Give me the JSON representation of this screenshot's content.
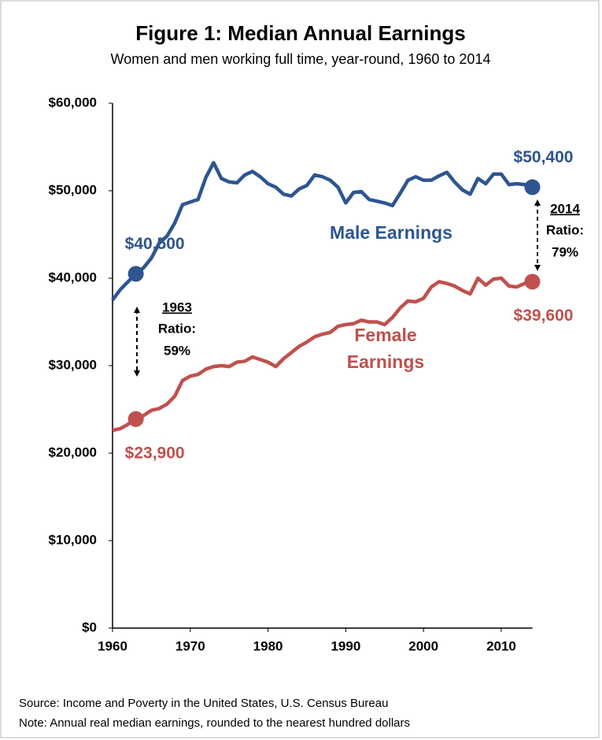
{
  "chart_data": {
    "type": "line",
    "title": "Figure 1: Median Annual Earnings",
    "subtitle": "Women and men working full time, year-round, 1960 to 2014",
    "x": [
      1960,
      1961,
      1962,
      1963,
      1964,
      1965,
      1966,
      1967,
      1968,
      1969,
      1970,
      1971,
      1972,
      1973,
      1974,
      1975,
      1976,
      1977,
      1978,
      1979,
      1980,
      1981,
      1982,
      1983,
      1984,
      1985,
      1986,
      1987,
      1988,
      1989,
      1990,
      1991,
      1992,
      1993,
      1994,
      1995,
      1996,
      1997,
      1998,
      1999,
      2000,
      2001,
      2002,
      2003,
      2004,
      2005,
      2006,
      2007,
      2008,
      2009,
      2010,
      2011,
      2012,
      2013,
      2014
    ],
    "series": [
      {
        "name": "Male Earnings",
        "color": "#2e5590",
        "values": [
          37500,
          38700,
          39600,
          40500,
          41200,
          42300,
          44000,
          44800,
          46300,
          48400,
          48700,
          49000,
          51500,
          53200,
          51400,
          51000,
          50900,
          51800,
          52200,
          51600,
          50800,
          50400,
          49600,
          49400,
          50200,
          50600,
          51800,
          51600,
          51200,
          50400,
          48600,
          49800,
          49900,
          49000,
          48800,
          48600,
          48300,
          49700,
          51200,
          51600,
          51200,
          51200,
          51700,
          52100,
          51000,
          50100,
          49600,
          51400,
          50800,
          51900,
          51900,
          50700,
          50800,
          50700,
          50400
        ],
        "value_labels": [
          null,
          null,
          null,
          "$40,500",
          null,
          null,
          null,
          null,
          null,
          null,
          null,
          null,
          null,
          null,
          null,
          null,
          null,
          null,
          null,
          null,
          null,
          null,
          null,
          null,
          null,
          null,
          null,
          null,
          null,
          null,
          null,
          null,
          null,
          null,
          null,
          null,
          null,
          null,
          null,
          null,
          null,
          null,
          null,
          null,
          null,
          null,
          null,
          null,
          null,
          null,
          null,
          null,
          null,
          null,
          "$50,400"
        ]
      },
      {
        "name": "Female Earnings",
        "color": "#c0504d",
        "values": [
          22600,
          22800,
          23300,
          23900,
          24300,
          24900,
          25100,
          25600,
          26500,
          28300,
          28800,
          29000,
          29600,
          29900,
          30000,
          29900,
          30400,
          30500,
          31000,
          30700,
          30400,
          29900,
          30800,
          31500,
          32200,
          32700,
          33300,
          33600,
          33800,
          34500,
          34700,
          34800,
          35200,
          35000,
          35000,
          34700,
          35500,
          36600,
          37400,
          37300,
          37700,
          39000,
          39600,
          39400,
          39100,
          38600,
          38200,
          40000,
          39200,
          39900,
          40000,
          39100,
          39000,
          39400,
          39600
        ],
        "value_labels": [
          null,
          null,
          null,
          "$23,900",
          null,
          null,
          null,
          null,
          null,
          null,
          null,
          null,
          null,
          null,
          null,
          null,
          null,
          null,
          null,
          null,
          null,
          null,
          null,
          null,
          null,
          null,
          null,
          null,
          null,
          null,
          null,
          null,
          null,
          null,
          null,
          null,
          null,
          null,
          null,
          null,
          null,
          null,
          null,
          null,
          null,
          null,
          null,
          null,
          null,
          null,
          null,
          null,
          null,
          null,
          "$39,600"
        ]
      }
    ],
    "xlim": [
      1960,
      2014
    ],
    "xticks": [
      1960,
      1970,
      1980,
      1990,
      2000,
      2010
    ],
    "ylim": [
      0,
      60000
    ],
    "yticks": [
      {
        "value": 0,
        "label": "$0"
      },
      {
        "value": 10000,
        "label": "$10,000"
      },
      {
        "value": 20000,
        "label": "$20,000"
      },
      {
        "value": 30000,
        "label": "$30,000"
      },
      {
        "value": 40000,
        "label": "$40,000"
      },
      {
        "value": 50000,
        "label": "$50,000"
      },
      {
        "value": 60000,
        "label": "$60,000"
      }
    ],
    "grid": false,
    "annotations": [
      {
        "heading": "1963",
        "label": "Ratio:",
        "ratio": {
          "value": 59,
          "label": "59%"
        }
      },
      {
        "heading": "2014",
        "label": "Ratio:",
        "ratio": {
          "value": 79,
          "label": "79%"
        }
      }
    ],
    "notes": [
      "Source: Income and Poverty in the United States, U.S. Census Bureau",
      "Note: Annual real median earnings, rounded to the nearest hundred dollars"
    ]
  }
}
